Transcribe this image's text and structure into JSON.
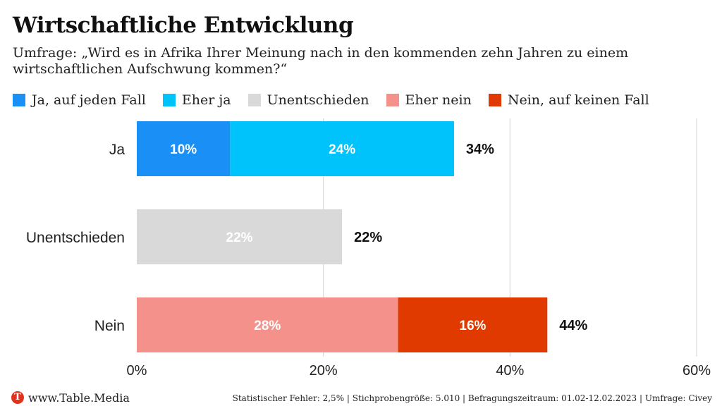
{
  "chart_data": {
    "type": "bar",
    "orientation": "horizontal",
    "stacked": true,
    "title": "Wirtschaftliche Entwicklung",
    "subtitle": "Umfrage: „Wird es in Afrika Ihrer Meinung nach in den kommenden zehn Jahren zu einem wirtschaftlichen Aufschwung kommen?“",
    "categories": [
      "Ja",
      "Unentschieden",
      "Nein"
    ],
    "series": [
      {
        "name": "Ja, auf jeden Fall",
        "color": "#1a8ff5",
        "values": [
          10,
          0,
          0
        ]
      },
      {
        "name": "Eher ja",
        "color": "#00c3fc",
        "values": [
          24,
          0,
          0
        ]
      },
      {
        "name": "Unentschieden",
        "color": "#d9d9d9",
        "values": [
          0,
          22,
          0
        ]
      },
      {
        "name": "Eher nein",
        "color": "#f4918a",
        "values": [
          0,
          0,
          28
        ]
      },
      {
        "name": "Nein, auf keinen Fall",
        "color": "#e03a00",
        "values": [
          0,
          0,
          16
        ]
      }
    ],
    "totals": [
      34,
      22,
      44
    ],
    "value_suffix": "%",
    "xlim": [
      0,
      60
    ],
    "xticks": [
      0,
      20,
      40,
      60
    ],
    "xtick_labels": [
      "0%",
      "20%",
      "40%",
      "60%"
    ],
    "grid": true,
    "legend_position": "top"
  },
  "footer": {
    "logo_letter": "T",
    "site": "www.Table.Media",
    "note": "Statistischer Fehler: 2,5% | Stichprobengröße: 5.010 | Befragungszeitraum: 01.02-12.02.2023 | Umfrage: Civey"
  }
}
